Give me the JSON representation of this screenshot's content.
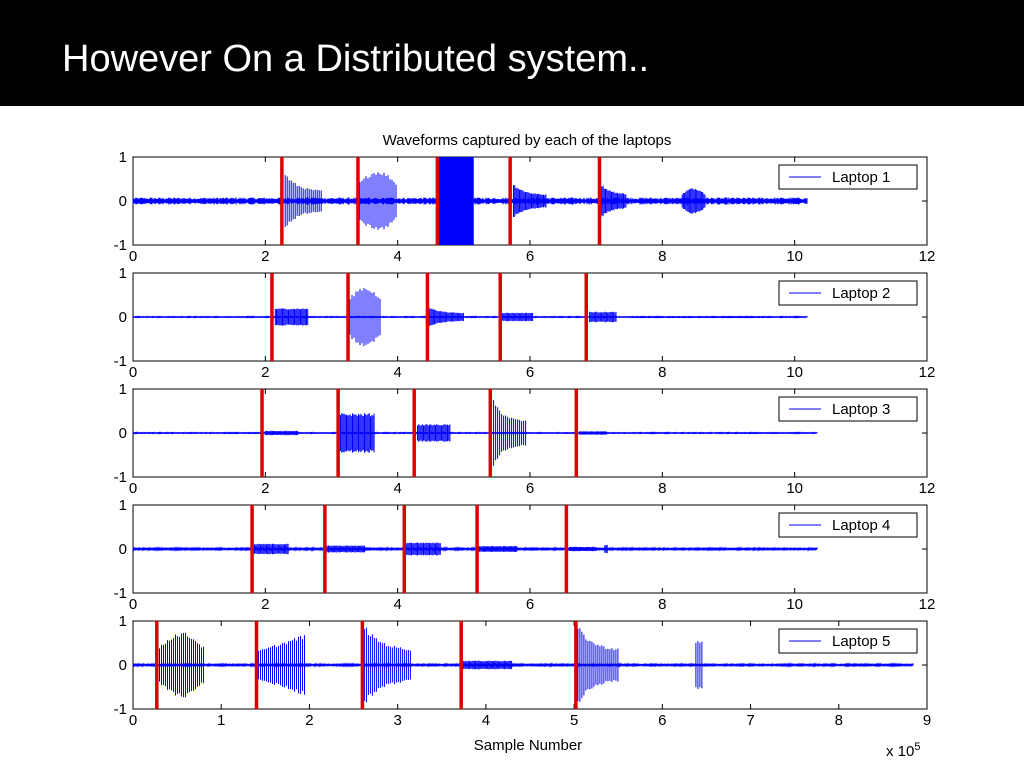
{
  "slide": {
    "title": "However On a Distributed system.."
  },
  "chart_data": {
    "type": "line",
    "title": "Waveforms captured by each of the laptops",
    "xlabel": "Sample Number",
    "x_multiplier_label": "x 10",
    "x_multiplier_exponent": "5",
    "colors": {
      "waveform": "#0000ff",
      "marker": "#dd0000",
      "axis": "#000000"
    },
    "panels": [
      {
        "name": "Laptop 1",
        "xlim": [
          0,
          12
        ],
        "ylim": [
          -1,
          1
        ],
        "xticks": [
          0,
          2,
          4,
          6,
          8,
          10,
          12
        ],
        "yticks": [
          -1,
          0,
          1
        ],
        "signal_end": 10.2,
        "noise_amplitude": 0.08,
        "markers": [
          2.25,
          3.4,
          4.6,
          5.7,
          7.05
        ],
        "bursts": [
          {
            "start": 2.3,
            "end": 2.85,
            "amplitude": 0.65,
            "shape": "decay"
          },
          {
            "start": 3.4,
            "end": 4.0,
            "amplitude": 0.7,
            "shape": "bulge"
          },
          {
            "start": 4.6,
            "end": 5.15,
            "amplitude": 1.0,
            "shape": "solid"
          },
          {
            "start": 5.75,
            "end": 6.25,
            "amplitude": 0.4,
            "shape": "decay"
          },
          {
            "start": 7.05,
            "end": 7.45,
            "amplitude": 0.45,
            "shape": "decay"
          },
          {
            "start": 8.3,
            "end": 8.65,
            "amplitude": 0.3,
            "shape": "bulge"
          }
        ]
      },
      {
        "name": "Laptop 2",
        "xlim": [
          0,
          12
        ],
        "ylim": [
          -1,
          1
        ],
        "xticks": [
          0,
          2,
          4,
          6,
          8,
          10,
          12
        ],
        "yticks": [
          -1,
          0,
          1
        ],
        "signal_end": 10.2,
        "noise_amplitude": 0.01,
        "markers": [
          2.1,
          3.25,
          4.45,
          5.55,
          6.85
        ],
        "bursts": [
          {
            "start": 2.15,
            "end": 2.65,
            "amplitude": 0.2,
            "shape": "flat"
          },
          {
            "start": 3.25,
            "end": 3.75,
            "amplitude": 0.7,
            "shape": "bulge"
          },
          {
            "start": 4.45,
            "end": 5.0,
            "amplitude": 0.25,
            "shape": "decay"
          },
          {
            "start": 5.55,
            "end": 6.05,
            "amplitude": 0.1,
            "shape": "flat"
          },
          {
            "start": 6.9,
            "end": 7.3,
            "amplitude": 0.12,
            "shape": "flat"
          }
        ]
      },
      {
        "name": "Laptop 3",
        "xlim": [
          0,
          12
        ],
        "ylim": [
          -1,
          1
        ],
        "xticks": [
          0,
          2,
          4,
          6,
          8,
          10,
          12
        ],
        "yticks": [
          -1,
          0,
          1
        ],
        "signal_end": 10.35,
        "noise_amplitude": 0.01,
        "markers": [
          1.95,
          3.1,
          4.25,
          5.4,
          6.7
        ],
        "bursts": [
          {
            "start": 2.0,
            "end": 2.5,
            "amplitude": 0.05,
            "shape": "flat"
          },
          {
            "start": 3.1,
            "end": 3.65,
            "amplitude": 0.45,
            "shape": "flat"
          },
          {
            "start": 4.3,
            "end": 4.8,
            "amplitude": 0.2,
            "shape": "flat"
          },
          {
            "start": 5.45,
            "end": 5.95,
            "amplitude": 0.75,
            "shape": "decay"
          },
          {
            "start": 6.75,
            "end": 7.15,
            "amplitude": 0.04,
            "shape": "flat"
          }
        ]
      },
      {
        "name": "Laptop 4",
        "xlim": [
          0,
          12
        ],
        "ylim": [
          -1,
          1
        ],
        "xticks": [
          0,
          2,
          4,
          6,
          8,
          10,
          12
        ],
        "yticks": [
          -1,
          0,
          1
        ],
        "signal_end": 10.35,
        "noise_amplitude": 0.02,
        "markers": [
          1.8,
          2.9,
          4.1,
          5.2,
          6.55
        ],
        "bursts": [
          {
            "start": 1.8,
            "end": 2.35,
            "amplitude": 0.12,
            "shape": "flat"
          },
          {
            "start": 2.9,
            "end": 3.5,
            "amplitude": 0.08,
            "shape": "flat"
          },
          {
            "start": 4.1,
            "end": 4.65,
            "amplitude": 0.15,
            "shape": "flat"
          },
          {
            "start": 5.2,
            "end": 5.8,
            "amplitude": 0.07,
            "shape": "flat"
          },
          {
            "start": 6.6,
            "end": 7.0,
            "amplitude": 0.05,
            "shape": "flat"
          },
          {
            "start": 7.13,
            "end": 7.17,
            "amplitude": 0.1,
            "shape": "flat"
          }
        ]
      },
      {
        "name": "Laptop 5",
        "xlim": [
          0,
          9
        ],
        "ylim": [
          -1,
          1
        ],
        "xticks": [
          0,
          1,
          2,
          3,
          4,
          5,
          6,
          7,
          8,
          9
        ],
        "yticks": [
          -1,
          0,
          1
        ],
        "signal_end": 8.85,
        "noise_amplitude": 0.02,
        "markers": [
          0.27,
          1.4,
          2.6,
          3.72,
          5.02
        ],
        "bursts": [
          {
            "start": 0.3,
            "end": 0.8,
            "amplitude": 0.75,
            "shape": "bulge"
          },
          {
            "start": 1.4,
            "end": 1.95,
            "amplitude": 0.7,
            "shape": "rise"
          },
          {
            "start": 2.6,
            "end": 3.15,
            "amplitude": 1.0,
            "shape": "decay"
          },
          {
            "start": 3.72,
            "end": 4.3,
            "amplitude": 0.1,
            "shape": "flat"
          },
          {
            "start": 5.02,
            "end": 5.5,
            "amplitude": 1.0,
            "shape": "decay"
          },
          {
            "start": 6.38,
            "end": 6.46,
            "amplitude": 0.55,
            "shape": "spike"
          }
        ]
      }
    ]
  }
}
